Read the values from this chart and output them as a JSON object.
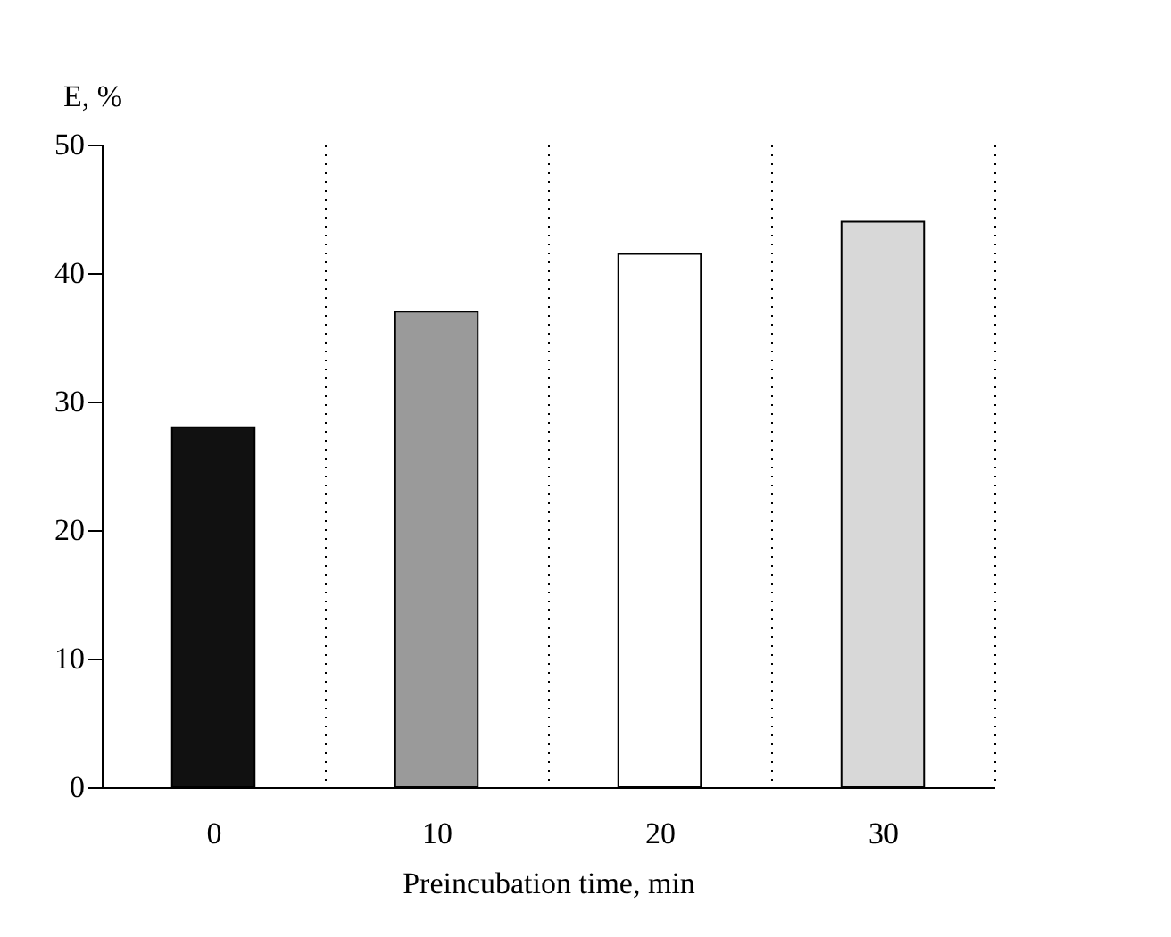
{
  "chart_data": {
    "type": "bar",
    "xlabel": "Preincubation time, min",
    "ylabel": "E, %",
    "categories": [
      "0",
      "10",
      "20",
      "30"
    ],
    "values": [
      28,
      37,
      41.5,
      44
    ],
    "colors": [
      "#111111",
      "#9a9a9a",
      "#ffffff",
      "#d8d8d8"
    ],
    "ylim": [
      0,
      50
    ],
    "yticks": [
      0,
      10,
      20,
      30,
      40,
      50
    ],
    "grid": "x"
  }
}
